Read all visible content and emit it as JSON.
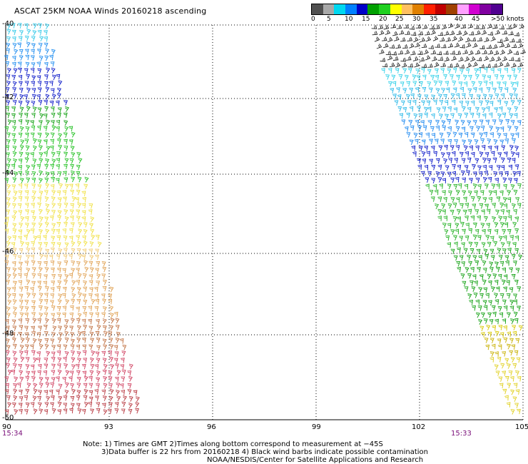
{
  "title": "ASCAT 25KM NOAA Winds 20160218 ascending",
  "color_scale": {
    "labels": [
      "0",
      "5",
      "10",
      "15",
      "20",
      "25",
      "30",
      "35",
      "40",
      "45",
      ">50 knots"
    ],
    "colors": [
      "#505050",
      "#a8a8a8",
      "#00d8f0",
      "#0080ff",
      "#0000c8",
      "#00a000",
      "#20d020",
      "#ffff00",
      "#ffc060",
      "#e08000",
      "#ff2000",
      "#c00000",
      "#a04000",
      "#ffa0ff",
      "#d000d0",
      "#8000a0",
      "#500090"
    ]
  },
  "map": {
    "lat_labels": [
      "-40",
      "-42",
      "-44",
      "-46",
      "-48",
      "-50"
    ],
    "lon_labels": [
      "90",
      "93",
      "96",
      "99",
      "102",
      "105"
    ],
    "lat_values": [
      -40,
      -42,
      -44,
      -46,
      -48,
      -50
    ],
    "lon_values": [
      90,
      93,
      96,
      99,
      102,
      105
    ],
    "swath_times": [
      "15:34",
      "15:33"
    ]
  },
  "notes": {
    "line1": "Note: 1) Times are GMT 2)Times along bottom correspond to measurement at −45S",
    "line2": "3)Data buffer is 22 hrs from 20160218 4) Black wind barbs indicate possible contamination",
    "line3": "NOAA/NESDIS/Center for Satellite Applications and Research"
  }
}
